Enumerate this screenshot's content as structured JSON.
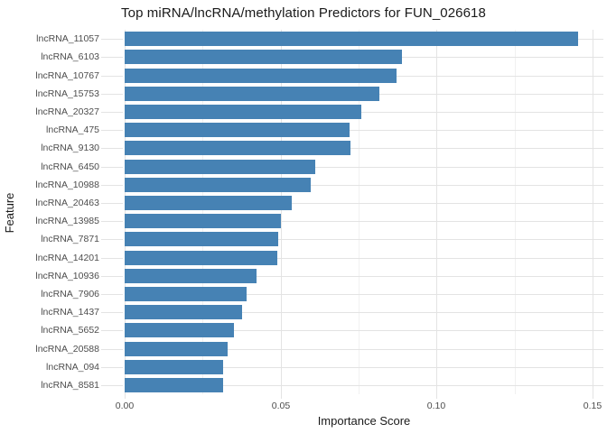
{
  "chart_data": {
    "type": "bar",
    "orientation": "horizontal",
    "title": "Top miRNA/lncRNA/methylation Predictors for FUN_026618",
    "xlabel": "Importance Score",
    "ylabel": "Feature",
    "categories": [
      "lncRNA_11057",
      "lncRNA_6103",
      "lncRNA_10767",
      "lncRNA_15753",
      "lncRNA_20327",
      "lncRNA_475",
      "lncRNA_9130",
      "lncRNA_6450",
      "lncRNA_10988",
      "lncRNA_20463",
      "lncRNA_13985",
      "lncRNA_7871",
      "lncRNA_14201",
      "lncRNA_10936",
      "lncRNA_7906",
      "lncRNA_1437",
      "lncRNA_5652",
      "lncRNA_20588",
      "lncRNA_094",
      "lncRNA_8581"
    ],
    "values": [
      0.1455,
      0.0889,
      0.0872,
      0.0817,
      0.0759,
      0.0721,
      0.0723,
      0.0611,
      0.0597,
      0.0535,
      0.0501,
      0.0493,
      0.049,
      0.0423,
      0.039,
      0.0376,
      0.035,
      0.0331,
      0.0315,
      0.0317
    ],
    "xlim": [
      0,
      0.15
    ],
    "x_major_ticks": [
      0,
      0.05,
      0.1,
      0.15
    ],
    "x_tick_labels": [
      "0.00",
      "0.05",
      "0.10",
      "0.15"
    ],
    "x_minor_ticks": [
      0.025,
      0.075,
      0.125
    ],
    "grid": "major-and-minor",
    "legend": "none",
    "colors": {
      "bar": "#4682B4",
      "grid_major": "#e3e3e3",
      "grid_minor": "#f1f1f1",
      "tick_text": "#4d4d4d",
      "title_text": "#1a1a1a",
      "background": "#ffffff"
    }
  }
}
